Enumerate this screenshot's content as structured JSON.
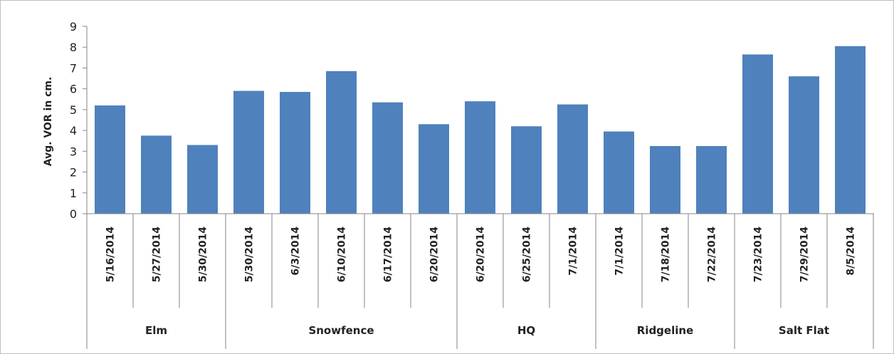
{
  "chart_data": {
    "type": "bar",
    "ylabel": "Avg. VOR in cm.",
    "ylim": [
      0,
      9
    ],
    "yticks": [
      0,
      1,
      2,
      3,
      4,
      5,
      6,
      7,
      8,
      9
    ],
    "grid": false,
    "legend": "none",
    "bar_color": "#4f81bd",
    "categories": [
      "5/16/2014",
      "5/27/2014",
      "5/30/2014",
      "5/30/2014",
      "6/3/2014",
      "6/10/2014",
      "6/17/2014",
      "6/20/2014",
      "6/20/2014",
      "6/25/2014",
      "7/1/2014",
      "7/1/2014",
      "7/18/2014",
      "7/22/2014",
      "7/23/2014",
      "7/29/2014",
      "8/5/2014"
    ],
    "values": [
      5.2,
      3.75,
      3.3,
      5.9,
      5.85,
      6.85,
      5.35,
      4.3,
      5.4,
      4.2,
      5.25,
      3.95,
      3.25,
      3.25,
      7.65,
      6.6,
      8.05
    ],
    "groups": [
      {
        "name": "Elm",
        "count": 3
      },
      {
        "name": "Snowfence",
        "count": 5
      },
      {
        "name": "HQ",
        "count": 3
      },
      {
        "name": "Ridgeline",
        "count": 3
      },
      {
        "name": "Salt Flat",
        "count": 3
      }
    ]
  }
}
